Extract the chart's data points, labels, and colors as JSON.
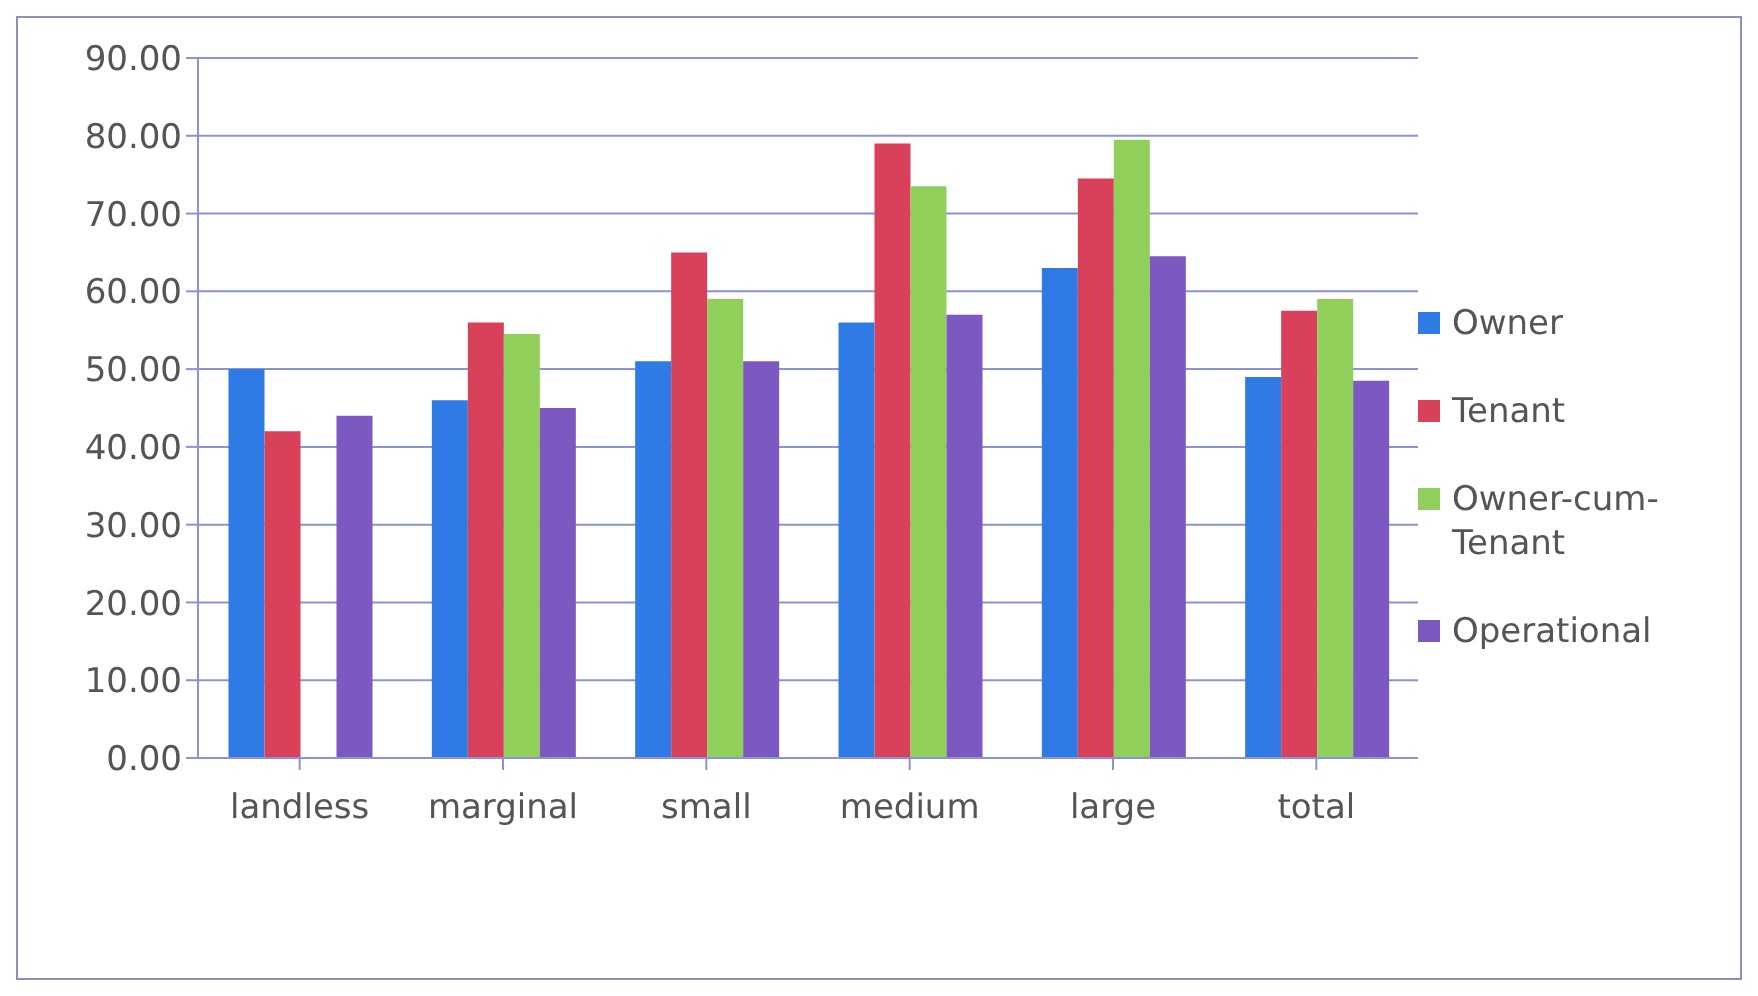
{
  "chart_data": {
    "type": "bar",
    "categories": [
      "landless",
      "marginal",
      "small",
      "medium",
      "large",
      "total"
    ],
    "series": [
      {
        "name": "Owner",
        "color": "#2f7ae5",
        "values": [
          50,
          46,
          51,
          56,
          63,
          49
        ]
      },
      {
        "name": "Tenant",
        "color": "#d9405a",
        "values": [
          42,
          56,
          65,
          79,
          74.5,
          57.5
        ]
      },
      {
        "name": "Owner-cum-Tenant",
        "color": "#8fcf5a",
        "values": [
          null,
          54.5,
          59,
          73.5,
          79.5,
          59
        ]
      },
      {
        "name": "Operational",
        "color": "#7b59c0",
        "values": [
          44,
          45,
          51,
          57,
          64.5,
          48.5
        ]
      }
    ],
    "ylim": [
      0,
      90
    ],
    "yticks": [
      {
        "value": 0,
        "label": "0.00"
      },
      {
        "value": 10,
        "label": "10.00"
      },
      {
        "value": 20,
        "label": "20.00"
      },
      {
        "value": 30,
        "label": "30.00"
      },
      {
        "value": 40,
        "label": "40.00"
      },
      {
        "value": 50,
        "label": "50.00"
      },
      {
        "value": 60,
        "label": "60.00"
      },
      {
        "value": 70,
        "label": "70.00"
      },
      {
        "value": 80,
        "label": "80.00"
      },
      {
        "value": 90,
        "label": "90.00"
      }
    ],
    "grid": "y",
    "legend": "right"
  }
}
